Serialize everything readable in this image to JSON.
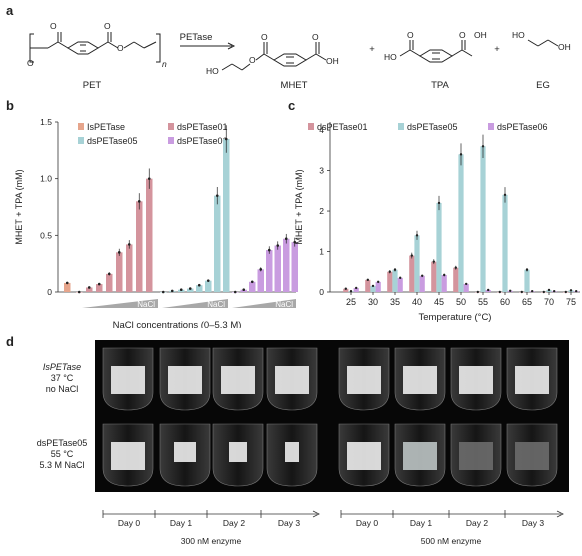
{
  "panels": {
    "a": {
      "letter": "a"
    },
    "b": {
      "letter": "b"
    },
    "c": {
      "letter": "c"
    },
    "d": {
      "letter": "d"
    }
  },
  "reaction": {
    "enzyme": "PETase",
    "subscript_n": "n",
    "products": [
      "PET",
      "MHET",
      "TPA",
      "EG"
    ],
    "plus": "+",
    "atoms": {
      "O": "O",
      "OH": "OH",
      "HO": "HO"
    }
  },
  "chart_data": [
    {
      "type": "bar",
      "panel": "b",
      "ylabel": "MHET + TPA (mM)",
      "xlabel": "NaCl concentrations (0–5.3 M)",
      "ylim": [
        0,
        1.5
      ],
      "yticks": [
        0,
        0.5,
        1.0,
        1.5
      ],
      "ytick_labels": [
        "0",
        "0.5",
        "1.0",
        "1.5"
      ],
      "legend": [
        "IsPETase",
        "dsPETase01",
        "dsPETase05",
        "dsPETase06"
      ],
      "legend_placement": "top",
      "wedge_label": "NaCl",
      "series": [
        {
          "name": "IsPETase",
          "color": "#e6a58c",
          "values": [
            0.08
          ]
        },
        {
          "name": "dsPETase01",
          "color": "#d4949d",
          "values": [
            0.0,
            0.04,
            0.07,
            0.16,
            0.35,
            0.42,
            0.8,
            1.0
          ]
        },
        {
          "name": "dsPETase05",
          "color": "#a7d2d6",
          "values": [
            0.0,
            0.01,
            0.02,
            0.03,
            0.06,
            0.1,
            0.85,
            1.35
          ]
        },
        {
          "name": "dsPETase06",
          "color": "#c99ce0",
          "values": [
            0.0,
            0.02,
            0.09,
            0.2,
            0.37,
            0.41,
            0.47,
            0.44
          ]
        }
      ]
    },
    {
      "type": "bar",
      "panel": "c",
      "ylabel": "MHET + TPA (mM)",
      "xlabel": "Temperature (°C)",
      "ylim": [
        0,
        4.2
      ],
      "yticks": [
        0,
        1,
        2,
        3,
        4
      ],
      "ytick_labels": [
        "0",
        "1",
        "2",
        "3",
        "4"
      ],
      "categories": [
        "25",
        "30",
        "35",
        "40",
        "45",
        "50",
        "55",
        "60",
        "65",
        "70",
        "75"
      ],
      "legend": [
        "dsPETase01",
        "dsPETase05",
        "dsPETase06"
      ],
      "legend_placement": "top",
      "series": [
        {
          "name": "dsPETase01",
          "color": "#d4949d",
          "values": [
            0.08,
            0.3,
            0.5,
            0.9,
            0.75,
            0.6,
            0.0,
            0.0,
            0.0,
            0.0,
            0.0
          ]
        },
        {
          "name": "dsPETase05",
          "color": "#a7d2d6",
          "values": [
            0.02,
            0.15,
            0.55,
            1.4,
            2.2,
            3.4,
            3.6,
            2.4,
            0.55,
            0.05,
            0.04
          ]
        },
        {
          "name": "dsPETase06",
          "color": "#c99ce0",
          "values": [
            0.1,
            0.25,
            0.35,
            0.4,
            0.42,
            0.2,
            0.05,
            0.03,
            0.02,
            0.02,
            0.02
          ]
        }
      ]
    }
  ],
  "photo": {
    "rows": [
      {
        "lines": [
          "IsPETase",
          "37 °C",
          "no NaCl"
        ]
      },
      {
        "lines": [
          "dsPETase05",
          "55 °C",
          "5.3 M NaCl"
        ]
      }
    ],
    "days": [
      "Day 0",
      "Day 1",
      "Day 2",
      "Day 3",
      "Day 0",
      "Day 1",
      "Day 2",
      "Day 3"
    ],
    "groups": [
      "300 nM enzyme",
      "500 nM enzyme"
    ]
  }
}
